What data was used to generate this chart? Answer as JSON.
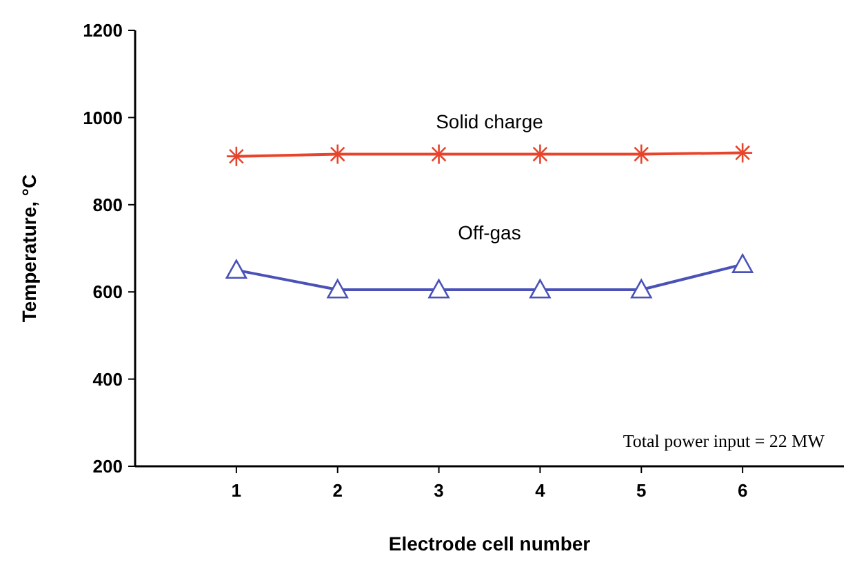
{
  "chart_data": {
    "type": "line",
    "xlabel": "Electrode cell number",
    "ylabel": "Temperature, °C",
    "x": [
      1,
      2,
      3,
      4,
      5,
      6
    ],
    "xlim": [
      0,
      7
    ],
    "xticks": [
      1,
      2,
      3,
      4,
      5,
      6
    ],
    "ylim": [
      200,
      1200
    ],
    "yticks": [
      200,
      400,
      600,
      800,
      1000,
      1200
    ],
    "grid": false,
    "series": [
      {
        "name": "Solid charge",
        "color": "#e8442c",
        "marker": "cross",
        "values": [
          911,
          916,
          916,
          916,
          916,
          919
        ]
      },
      {
        "name": "Off-gas",
        "color": "#4a52b8",
        "marker": "triangle",
        "values": [
          650,
          605,
          605,
          605,
          605,
          663
        ]
      }
    ],
    "annotations": [
      "Total power input = 22 MW"
    ]
  }
}
